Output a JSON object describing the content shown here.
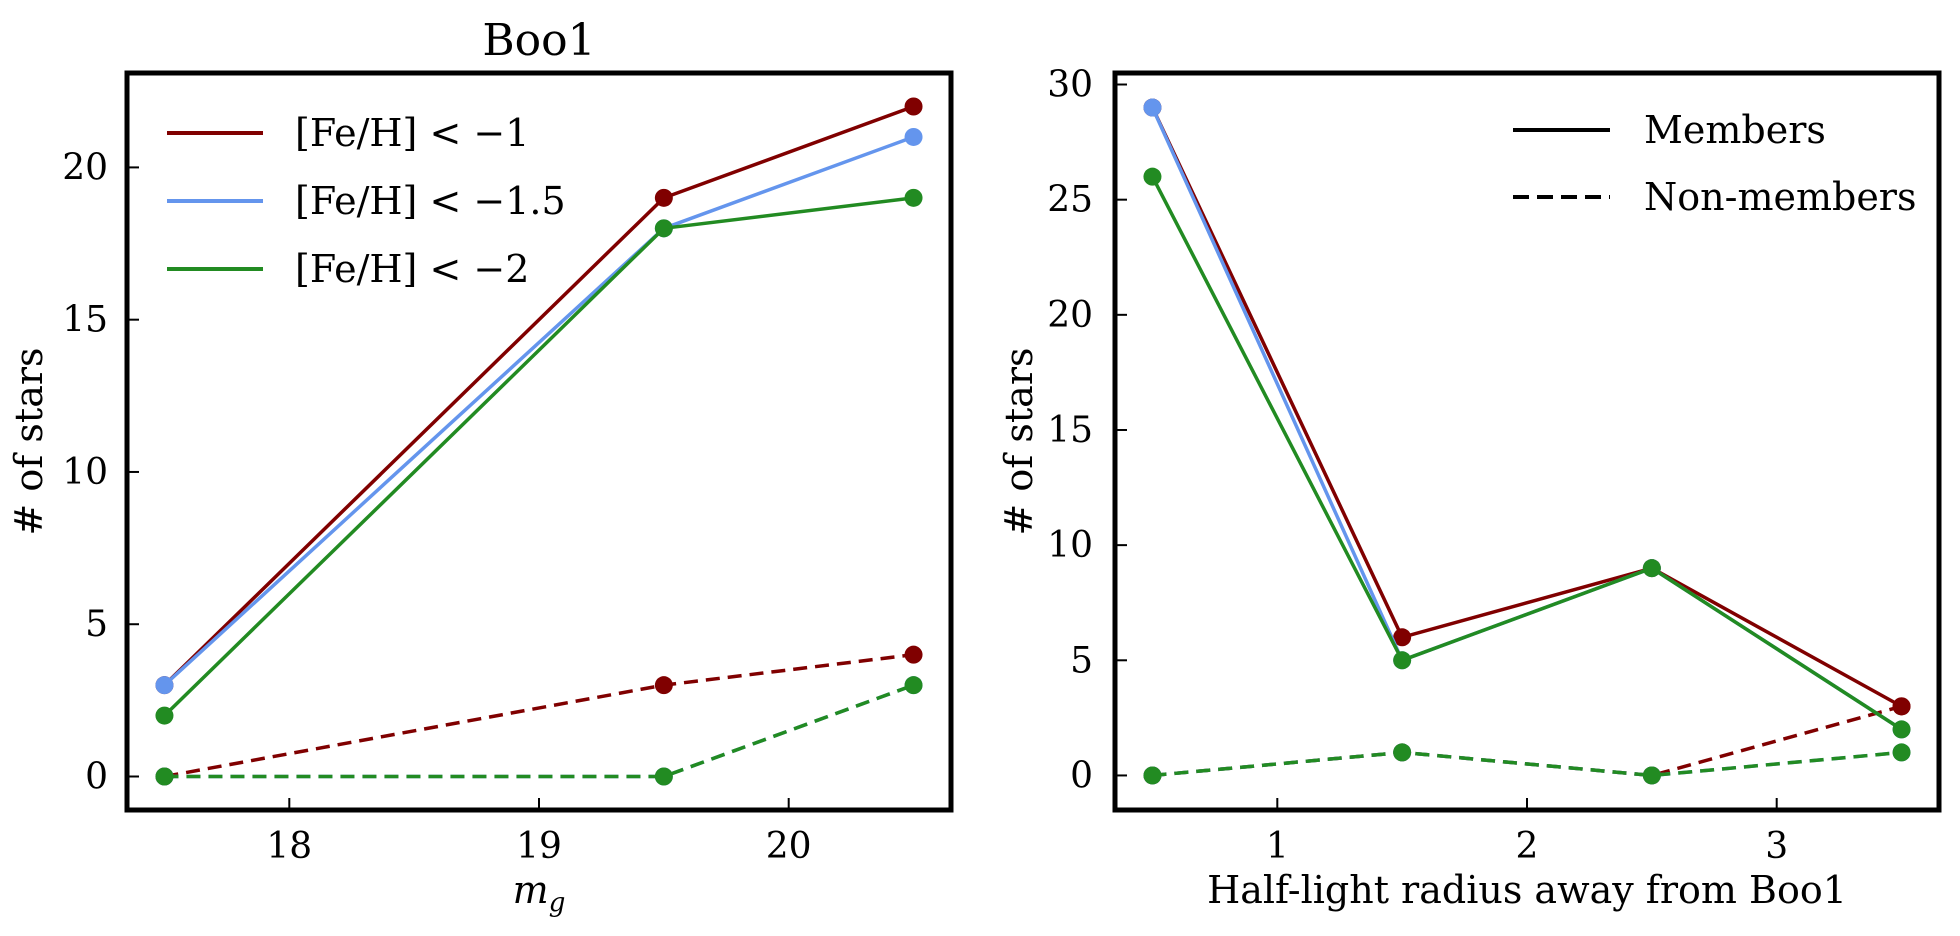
{
  "colors": {
    "fe_lt_1": "#800000",
    "fe_lt_1_5": "#6495ED",
    "fe_lt_2": "#228B22",
    "axis": "#000000"
  },
  "chart_data": [
    {
      "type": "line",
      "title": "Boo1",
      "xlabel": "m_g",
      "ylabel": "# of stars",
      "xlim": [
        17.35,
        20.65
      ],
      "ylim": [
        -1.1,
        23.1
      ],
      "xticks": [
        18,
        19,
        20
      ],
      "yticks": [
        0,
        5,
        10,
        15,
        20
      ],
      "grid": false,
      "legend": {
        "placement": "top-left",
        "entries": [
          {
            "label": "[Fe/H] < −1",
            "color": "#800000",
            "style": "solid"
          },
          {
            "label": "[Fe/H] < −1.5",
            "color": "#6495ED",
            "style": "solid"
          },
          {
            "label": "[Fe/H] < −2",
            "color": "#228B22",
            "style": "solid"
          }
        ]
      },
      "x": [
        17.5,
        19.5,
        20.5
      ],
      "series": [
        {
          "group": "members",
          "color": "#800000",
          "style": "solid",
          "values": [
            3,
            19,
            22
          ]
        },
        {
          "group": "members",
          "color": "#6495ED",
          "style": "solid",
          "values": [
            3,
            18,
            21
          ]
        },
        {
          "group": "members",
          "color": "#228B22",
          "style": "solid",
          "values": [
            2,
            18,
            19
          ]
        },
        {
          "group": "non-members",
          "color": "#800000",
          "style": "dashed",
          "values": [
            0,
            3,
            4
          ]
        },
        {
          "group": "non-members",
          "color": "#6495ED",
          "style": "dashed",
          "values": [
            0,
            0,
            3
          ]
        },
        {
          "group": "non-members",
          "color": "#228B22",
          "style": "dashed",
          "values": [
            0,
            0,
            3
          ]
        }
      ]
    },
    {
      "type": "line",
      "title": "",
      "xlabel": "Half-light radius away from Boo1",
      "ylabel": "# of stars",
      "xlim": [
        0.35,
        3.65
      ],
      "ylim": [
        -1.5,
        30.5
      ],
      "xticks": [
        1,
        2,
        3
      ],
      "yticks": [
        0,
        5,
        10,
        15,
        20,
        25,
        30
      ],
      "grid": false,
      "legend": {
        "placement": "top-right",
        "entries": [
          {
            "label": "Members",
            "color": "#000000",
            "style": "solid"
          },
          {
            "label": "Non-members",
            "color": "#000000",
            "style": "dashed"
          }
        ]
      },
      "x": [
        0.5,
        1.5,
        2.5,
        3.5
      ],
      "series": [
        {
          "group": "members",
          "color": "#800000",
          "style": "solid",
          "values": [
            29,
            6,
            9,
            3
          ]
        },
        {
          "group": "members",
          "color": "#6495ED",
          "style": "solid",
          "values": [
            29,
            5,
            9,
            2
          ]
        },
        {
          "group": "members",
          "color": "#228B22",
          "style": "solid",
          "values": [
            26,
            5,
            9,
            2
          ]
        },
        {
          "group": "non-members",
          "color": "#800000",
          "style": "dashed",
          "values": [
            0,
            1,
            0,
            3
          ]
        },
        {
          "group": "non-members",
          "color": "#6495ED",
          "style": "dashed",
          "values": [
            0,
            1,
            0,
            1
          ]
        },
        {
          "group": "non-members",
          "color": "#228B22",
          "style": "dashed",
          "values": [
            0,
            1,
            0,
            1
          ]
        }
      ]
    }
  ]
}
